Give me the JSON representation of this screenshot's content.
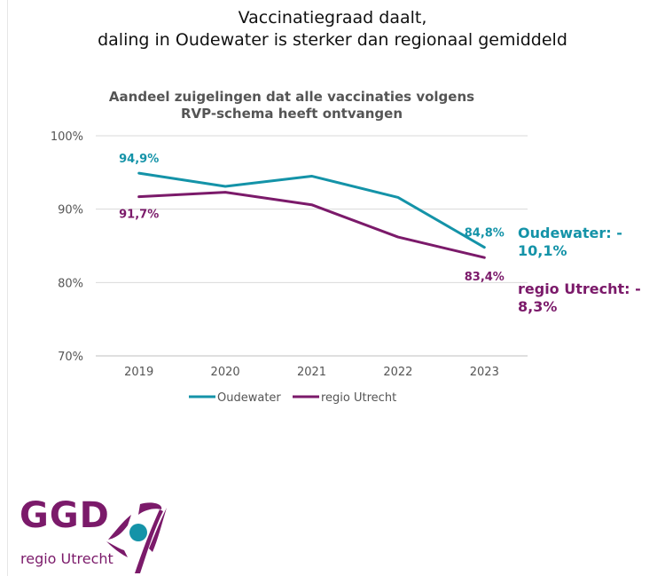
{
  "headline": {
    "line1": "Vaccinatiegraad daalt,",
    "line2": "daling in Oudewater is sterker dan regionaal gemiddeld"
  },
  "chart_data": {
    "type": "line",
    "title": "Aandeel zuigelingen dat alle vaccinaties volgens RVP-schema heeft ontvangen",
    "title_lines": [
      "Aandeel zuigelingen dat alle vaccinaties volgens",
      "RVP-schema heeft ontvangen"
    ],
    "categories": [
      "2019",
      "2020",
      "2021",
      "2022",
      "2023"
    ],
    "ylim": [
      70,
      100
    ],
    "yticks": [
      70,
      80,
      90,
      100
    ],
    "ytick_labels": [
      "70%",
      "80%",
      "90%",
      "100%"
    ],
    "grid": true,
    "legend": "bottom",
    "series": [
      {
        "name": "Oudewater",
        "color": "#1493a8",
        "values": [
          94.9,
          93.1,
          94.5,
          91.6,
          84.8
        ],
        "labels": [
          "94,9%",
          "",
          "",
          "",
          "84,8%"
        ]
      },
      {
        "name": "regio Utrecht",
        "color": "#7b1a6a",
        "values": [
          91.7,
          92.3,
          90.6,
          86.2,
          83.4
        ],
        "labels": [
          "91,7%",
          "",
          "",
          "",
          "83,4%"
        ]
      }
    ]
  },
  "callouts": {
    "oudewater_line1": "Oudewater: -",
    "oudewater_line2": "10,1%",
    "regio_line1": "regio Utrecht: -",
    "regio_line2": "8,3%"
  },
  "logo": {
    "ggd": "GGD",
    "sub": "regio Utrecht",
    "purple": "#7b1a6a",
    "teal": "#1493a8"
  }
}
